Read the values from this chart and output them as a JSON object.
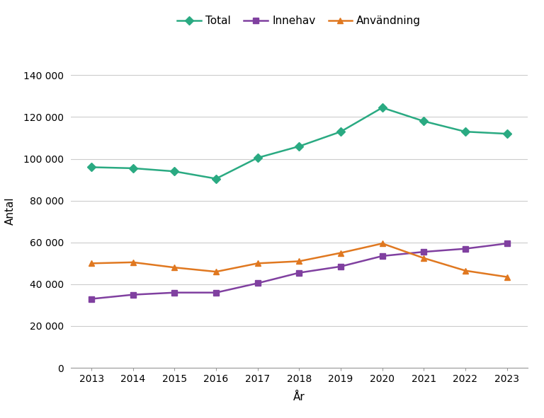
{
  "years": [
    2013,
    2014,
    2015,
    2016,
    2017,
    2018,
    2019,
    2020,
    2021,
    2022,
    2023
  ],
  "total": [
    96000,
    95500,
    94000,
    90500,
    100500,
    106000,
    113000,
    124500,
    118000,
    113000,
    112000
  ],
  "innehav": [
    33000,
    35000,
    36000,
    36000,
    40500,
    45500,
    48500,
    53500,
    55500,
    57000,
    59500
  ],
  "anvandning": [
    50000,
    50500,
    48000,
    46000,
    50000,
    51000,
    55000,
    59500,
    52500,
    46500,
    43500
  ],
  "colors": {
    "total": "#2aaa82",
    "innehav": "#8040a0",
    "anvandning": "#e07820"
  },
  "legend_labels": [
    "Total",
    "Innehav",
    "Användning"
  ],
  "xlabel": "År",
  "ylabel": "Antal",
  "ylim": [
    0,
    150000
  ],
  "yticks": [
    0,
    20000,
    40000,
    60000,
    80000,
    100000,
    120000,
    140000
  ],
  "background_color": "#ffffff",
  "grid_color": "#cccccc",
  "figsize": [
    7.68,
    5.91
  ],
  "dpi": 100
}
